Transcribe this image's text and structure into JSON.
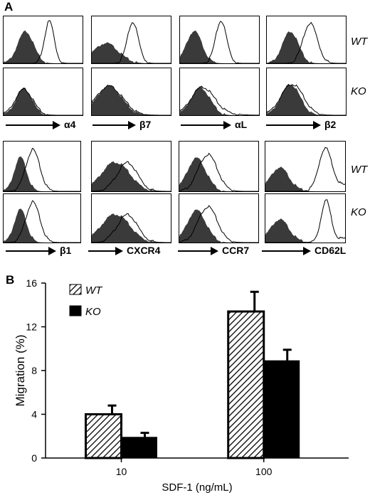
{
  "panel_a": {
    "letter": "A",
    "row_labels": [
      "WT",
      "KO",
      "WT",
      "KO"
    ],
    "markers_top": [
      "α4",
      "β7",
      "αL",
      "β2"
    ],
    "markers_bottom": [
      "β1",
      "CXCR4",
      "CCR7",
      "CD62L"
    ]
  },
  "panel_b": {
    "letter": "B"
  },
  "chart_data": {
    "type": "bar",
    "categories": [
      "10",
      "100"
    ],
    "series": [
      {
        "name": "WT",
        "values": [
          4.0,
          13.4
        ],
        "errors": [
          0.8,
          1.8
        ],
        "fill": "hatched"
      },
      {
        "name": "KO",
        "values": [
          1.9,
          8.9
        ],
        "errors": [
          0.4,
          1.0
        ],
        "fill": "#000000"
      }
    ],
    "xlabel": "SDF-1 (ng/mL)",
    "ylabel": "Migration (%)",
    "ylim": [
      0,
      16
    ],
    "yticks": [
      0,
      4,
      8,
      12,
      16
    ],
    "grid": false,
    "legend": "top-left"
  }
}
